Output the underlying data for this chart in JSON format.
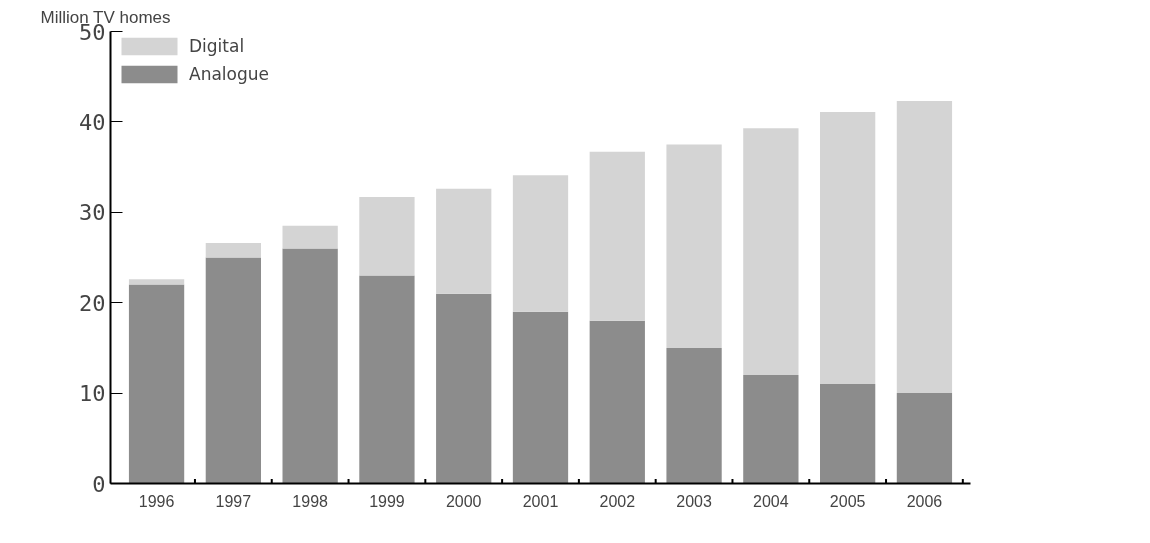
{
  "chart_data": {
    "type": "bar",
    "stacked": true,
    "ylabel": "Million TV homes",
    "categories": [
      "1996",
      "1997",
      "1998",
      "1999",
      "2000",
      "2001",
      "2002",
      "2003",
      "2004",
      "2005",
      "2006"
    ],
    "series": [
      {
        "name": "Analogue",
        "color": "#8c8c8c",
        "values": [
          22,
          25,
          26,
          23,
          21,
          19,
          18,
          15,
          12,
          11,
          10
        ]
      },
      {
        "name": "Digital",
        "color": "#d4d4d4",
        "values": [
          0.6,
          1.6,
          2.5,
          8.7,
          11.6,
          15.1,
          18.7,
          22.5,
          27.3,
          30.1,
          32.3
        ]
      }
    ],
    "ylim": [
      0,
      50
    ],
    "yticks": [
      0,
      10,
      20,
      30,
      40,
      50
    ],
    "grid": false,
    "legend": "top left"
  }
}
